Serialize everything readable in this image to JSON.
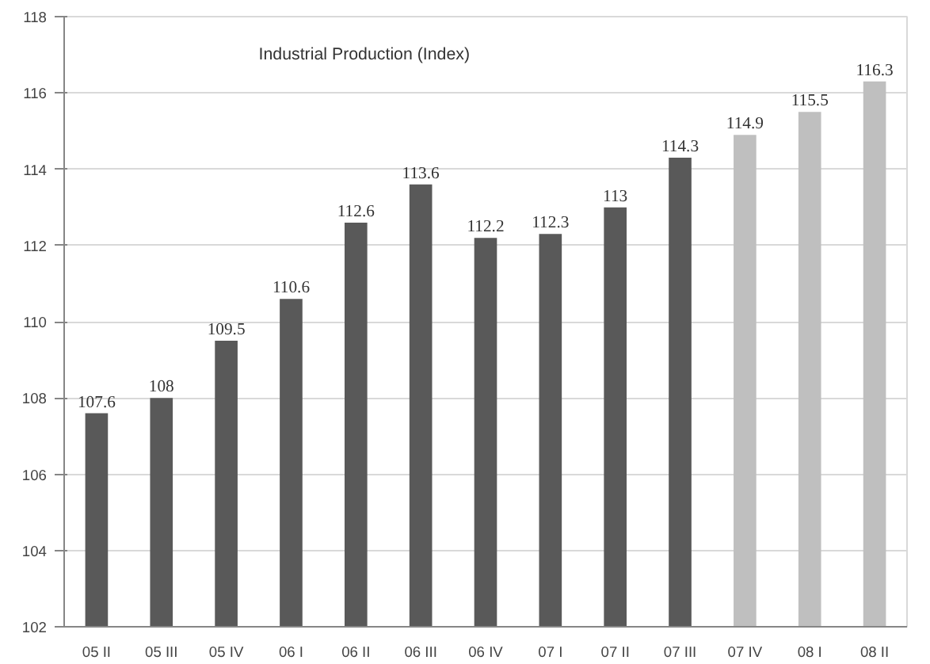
{
  "chart_data": {
    "type": "bar",
    "title": "Industrial Production (Index)",
    "categories": [
      "05 II",
      "05 III",
      "05 IV",
      "06 I",
      "06 II",
      "06 III",
      "06 IV",
      "07 I",
      "07 II",
      "07 III",
      "07 IV",
      "08 I",
      "08 II"
    ],
    "values": [
      107.6,
      108,
      109.5,
      110.6,
      112.6,
      113.6,
      112.2,
      112.3,
      113,
      114.3,
      114.9,
      115.5,
      116.3
    ],
    "colors": [
      "#595959",
      "#595959",
      "#595959",
      "#595959",
      "#595959",
      "#595959",
      "#595959",
      "#595959",
      "#595959",
      "#595959",
      "#bfbfbf",
      "#bfbfbf",
      "#bfbfbf"
    ],
    "ylim": [
      102,
      118
    ],
    "yticks": [
      102,
      104,
      106,
      108,
      110,
      112,
      114,
      116,
      118
    ],
    "grid": "y",
    "data_labels": true
  }
}
